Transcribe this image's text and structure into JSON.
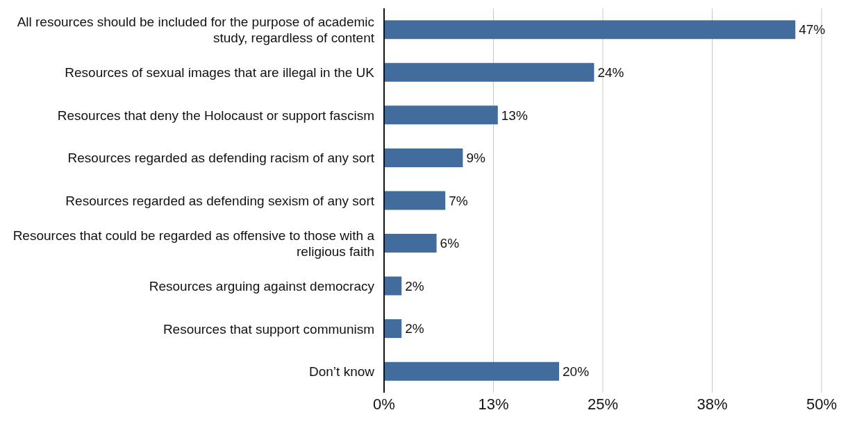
{
  "chart_data": {
    "type": "bar",
    "orientation": "horizontal",
    "categories": [
      "All resources should be included for the purpose of academic study, regardless of content",
      "Resources of sexual images that are illegal in the UK",
      "Resources that deny the Holocaust or support fascism",
      "Resources regarded as defending racism of any sort",
      "Resources regarded as defending sexism of any sort",
      "Resources that could be regarded as offensive to those with a religious faith",
      "Resources arguing against democracy",
      "Resources that support communism",
      "Don’t know"
    ],
    "values": [
      47,
      24,
      13,
      9,
      7,
      6,
      2,
      2,
      20
    ],
    "value_labels": [
      "47%",
      "24%",
      "13%",
      "9%",
      "7%",
      "6%",
      "2%",
      "2%",
      "20%"
    ],
    "color": "#416c9c",
    "xlim": [
      0,
      50
    ],
    "xticks": [
      {
        "value": 0,
        "label": "0%"
      },
      {
        "value": 12.5,
        "label": "13%"
      },
      {
        "value": 25,
        "label": "25%"
      },
      {
        "value": 37.5,
        "label": "38%"
      },
      {
        "value": 50,
        "label": "50%"
      }
    ],
    "grid": "x"
  }
}
